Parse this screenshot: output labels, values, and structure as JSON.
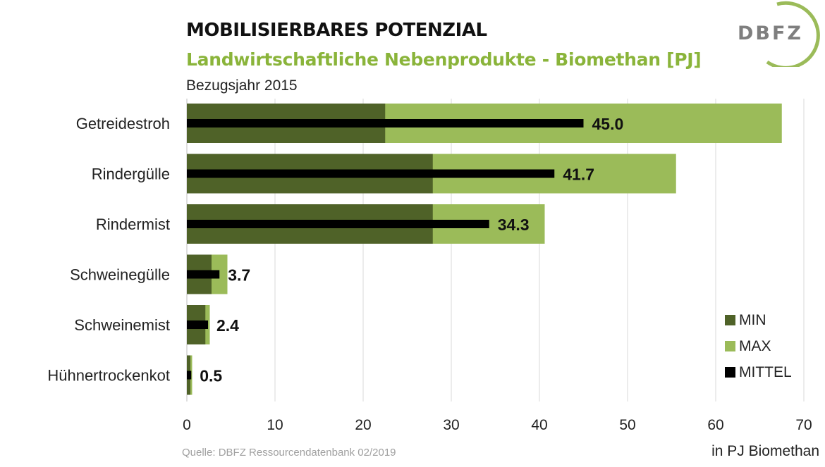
{
  "header": {
    "title": "MOBILISIERBARES POTENZIAL",
    "subtitle": "Landwirtschaftliche Nebenprodukte - Biomethan [PJ]",
    "year": "Bezugsjahr 2015"
  },
  "logo": {
    "text": "DBFZ"
  },
  "footer": {
    "source": "Quelle: DBFZ Ressourcendatenbank 02/2019",
    "unit": "in PJ Biomethan"
  },
  "colors": {
    "min": "#4f6228",
    "max": "#9bbb59",
    "mittel": "#000000",
    "subtitle": "#8ab43a",
    "grid": "#d9d9d9"
  },
  "chart_data": {
    "type": "bar",
    "orientation": "horizontal",
    "categories": [
      "Getreidestroh",
      "Rindergülle",
      "Rindermist",
      "Schweinegülle",
      "Schweinemist",
      "Hühnertrockenkot"
    ],
    "series": [
      {
        "name": "MIN",
        "values": [
          22.5,
          27.9,
          27.9,
          2.8,
          2.1,
          0.4
        ]
      },
      {
        "name": "MAX",
        "values": [
          67.5,
          55.5,
          40.6,
          4.6,
          2.6,
          0.6
        ]
      },
      {
        "name": "MITTEL",
        "values": [
          45.0,
          41.7,
          34.3,
          3.7,
          2.4,
          0.5
        ]
      }
    ],
    "data_labels": [
      "45.0",
      "41.7",
      "34.3",
      "3.7",
      "2.4",
      "0.5"
    ],
    "xlim": [
      0,
      70
    ],
    "xticks": [
      0,
      10,
      20,
      30,
      40,
      50,
      60,
      70
    ],
    "grid": true,
    "legend_position": "bottom-right",
    "xlabel": "in PJ Biomethan"
  }
}
